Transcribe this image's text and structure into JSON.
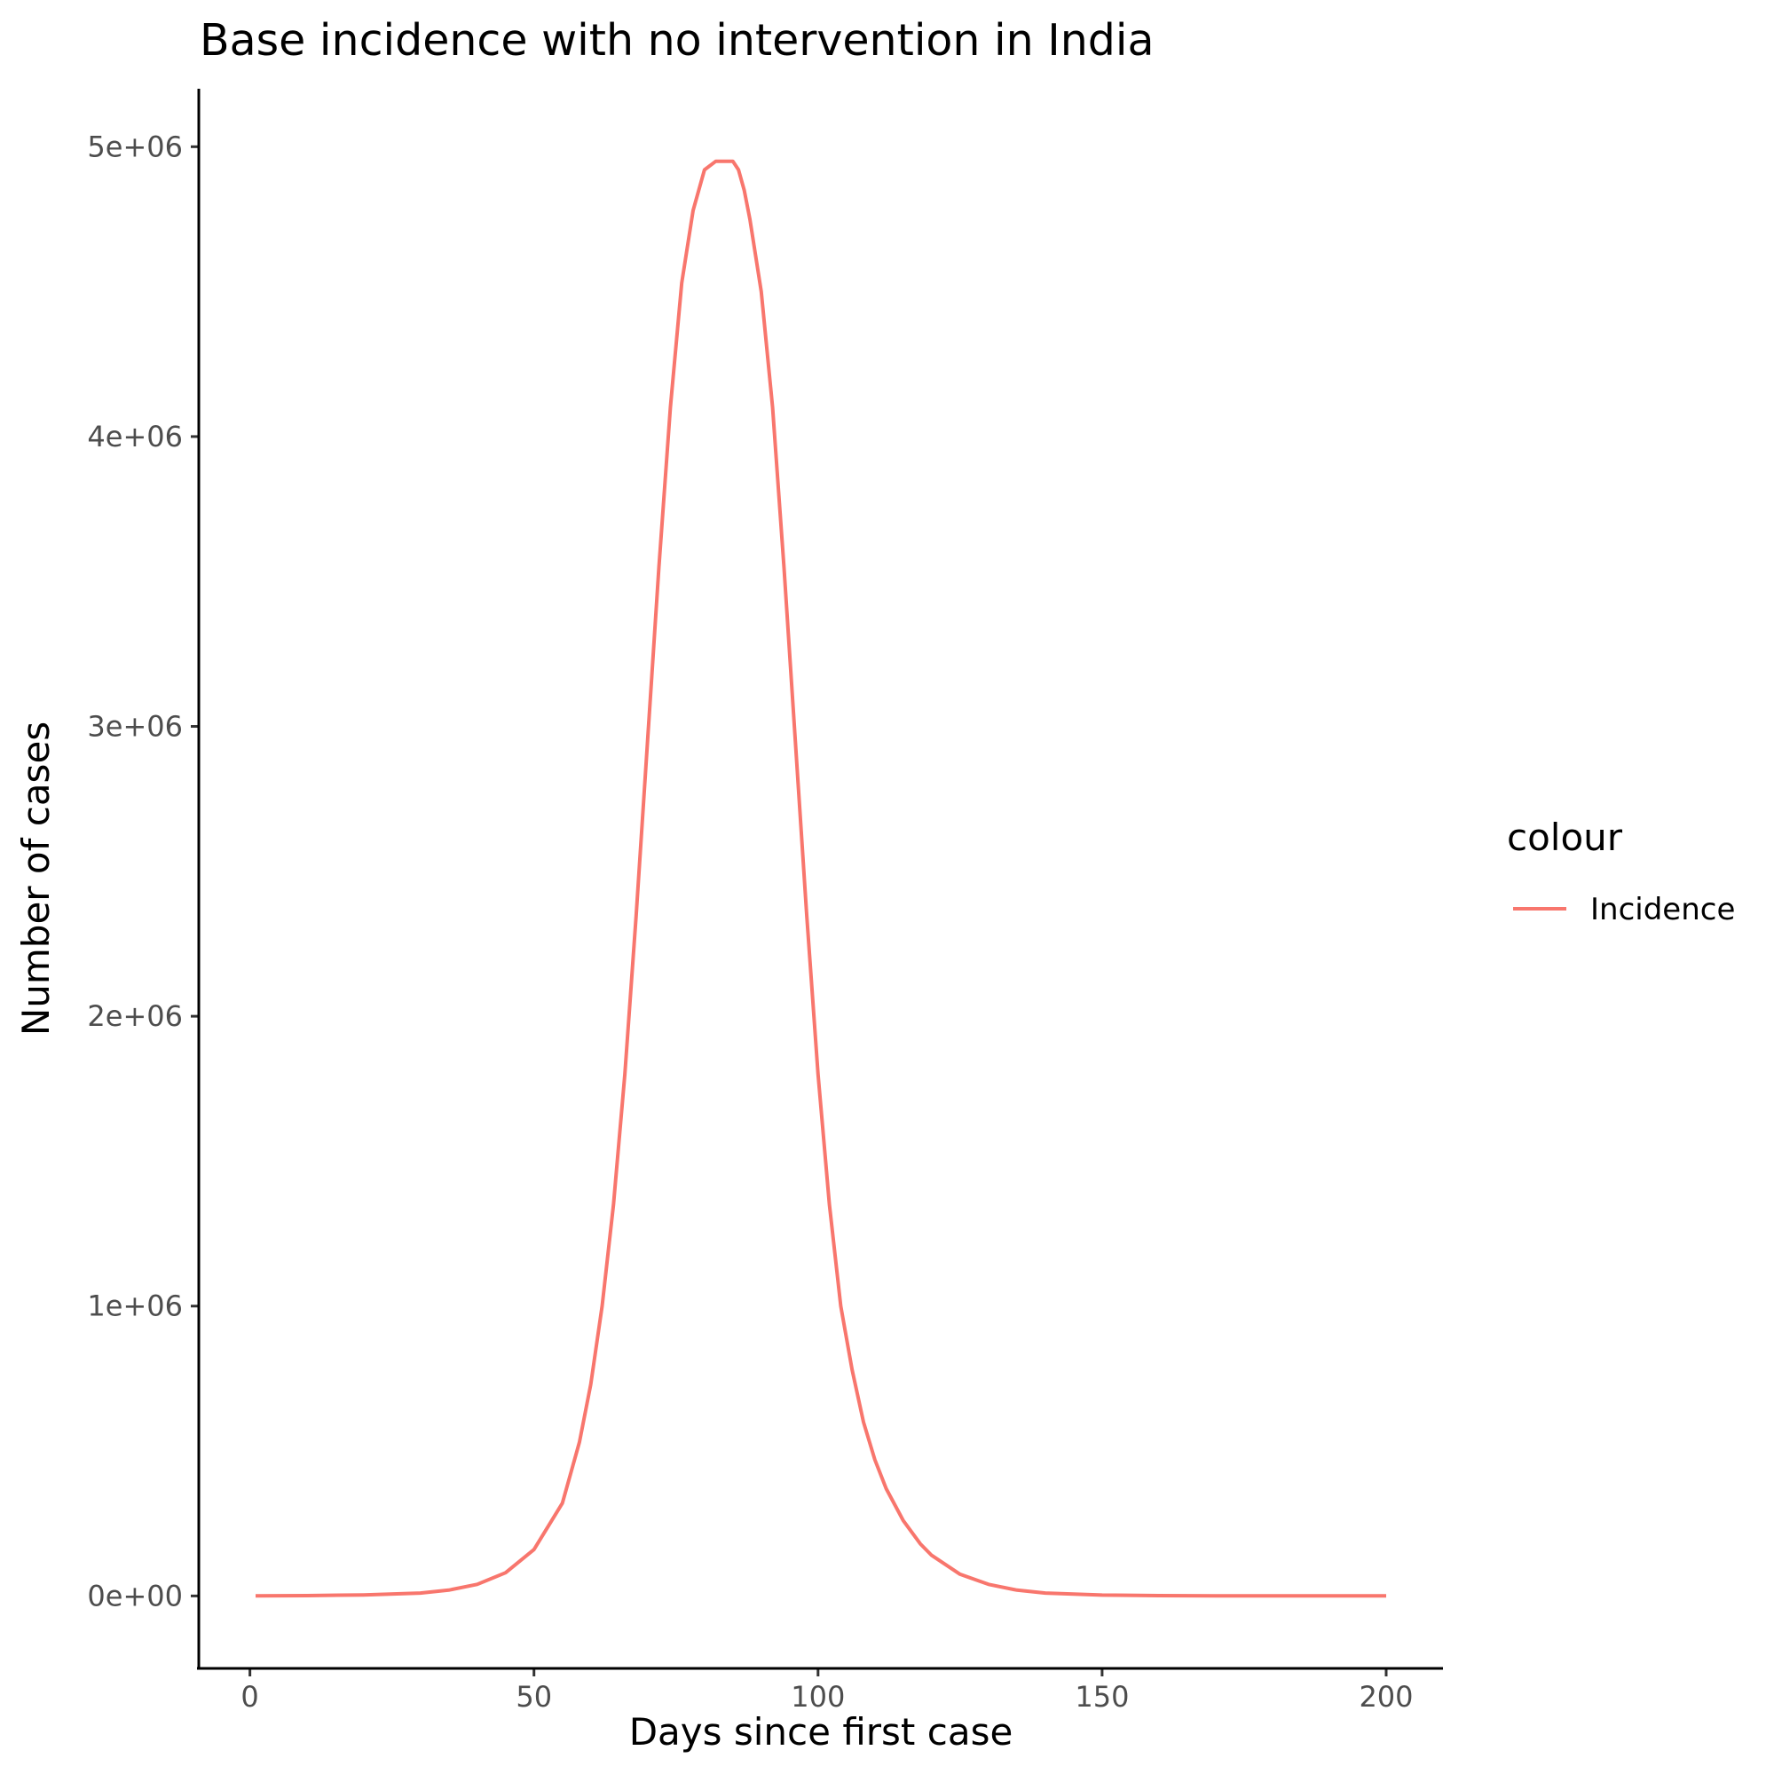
{
  "chart_data": {
    "type": "line",
    "title": "Base incidence with no intervention in India",
    "xlabel": "Days since first case",
    "ylabel": "Number of cases",
    "xlim": [
      -9,
      210
    ],
    "ylim": [
      -250000,
      5200000
    ],
    "x_ticks": [
      0,
      50,
      100,
      150,
      200
    ],
    "x_tick_labels": [
      "0",
      "50",
      "100",
      "150",
      "200"
    ],
    "y_ticks": [
      0,
      1000000,
      2000000,
      3000000,
      4000000,
      5000000
    ],
    "y_tick_labels": [
      "0e+00",
      "1e+06",
      "2e+06",
      "3e+06",
      "4e+06",
      "5e+06"
    ],
    "grid": false,
    "legend": {
      "title": "colour",
      "position": "right"
    },
    "series": [
      {
        "name": "Incidence",
        "color": "#F8766D",
        "x": [
          1,
          10,
          20,
          30,
          35,
          40,
          45,
          50,
          55,
          58,
          60,
          62,
          64,
          66,
          68,
          70,
          72,
          74,
          76,
          78,
          80,
          82,
          83,
          84,
          85,
          86,
          87,
          88,
          90,
          92,
          94,
          96,
          98,
          100,
          102,
          104,
          106,
          108,
          110,
          112,
          115,
          118,
          120,
          125,
          130,
          135,
          140,
          150,
          160,
          170,
          180,
          190,
          200
        ],
        "y": [
          0,
          1000,
          3500,
          10000,
          20000,
          40000,
          80000,
          160000,
          320000,
          530000,
          730000,
          1000000,
          1350000,
          1800000,
          2350000,
          2950000,
          3550000,
          4100000,
          4530000,
          4780000,
          4920000,
          4950000,
          4950000,
          4950000,
          4950000,
          4920000,
          4850000,
          4750000,
          4500000,
          4100000,
          3550000,
          2950000,
          2350000,
          1800000,
          1350000,
          1000000,
          780000,
          600000,
          470000,
          370000,
          260000,
          180000,
          140000,
          75000,
          40000,
          20000,
          10000,
          3000,
          1000,
          300,
          100,
          30,
          10
        ]
      }
    ]
  }
}
